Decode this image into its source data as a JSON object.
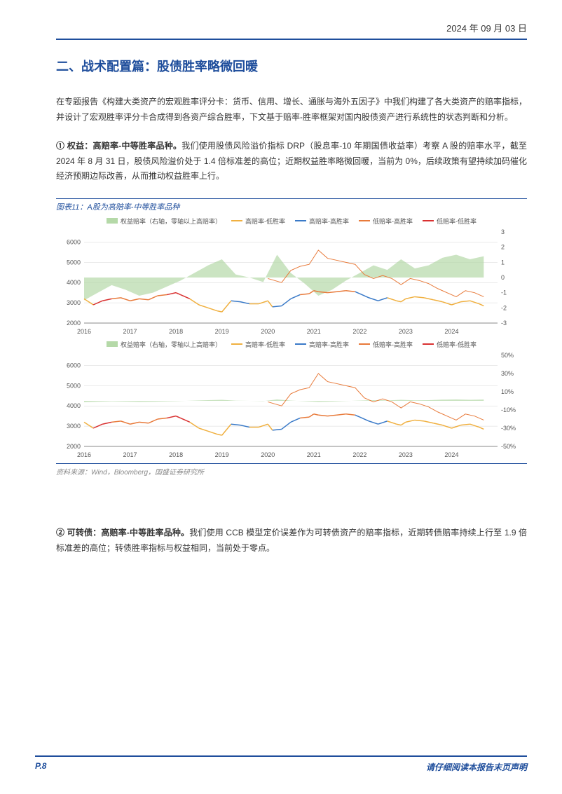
{
  "header": {
    "date": "2024 年 09 月 03 日"
  },
  "section": {
    "title": "二、战术配置篇：股债胜率略微回暖"
  },
  "para1": "在专题报告《构建大类资产的宏观胜率评分卡：货币、信用、增长、通胀与海外五因子》中我们构建了各大类资产的赔率指标，并设计了宏观胜率评分卡合成得到各资产综合胜率，下文基于赔率-胜率框架对国内股债资产进行系统性的状态判断和分析。",
  "para2_lead": "① 权益：高赔率-中等胜率品种。",
  "para2": "我们使用股债风险溢价指标 DRP（股息率-10 年期国债收益率）考察 A 股的赔率水平，截至 2024 年 8 月 31 日，股债风险溢价处于 1.4 倍标准差的高位；近期权益胜率略微回暖，当前为 0%，后续政策有望持续加码催化经济预期边际改善，从而推动权益胜率上行。",
  "chart11": {
    "title": "图表11：A股为高赔率-中等胜率品种",
    "source": "资料来源：Wind，Bloomberg，国盛证券研究所",
    "legend": {
      "area": "权益赔率（右轴，零轴以上高赔率）",
      "l1": "高赔率-低胜率",
      "l2": "高赔率-高胜率",
      "l3": "低赔率-高胜率",
      "l4": "低赔率-低胜率"
    },
    "colors": {
      "area": "#b5d9a8",
      "l1": "#f0b040",
      "l2": "#3a7ac8",
      "l3": "#e87a3a",
      "l4": "#d93030",
      "grid": "#d5d5d5",
      "axis": "#888888",
      "text": "#555555"
    },
    "panel1": {
      "y1_ticks": [
        2000,
        3000,
        4000,
        5000,
        6000
      ],
      "y1_lim": [
        2000,
        6500
      ],
      "y2_ticks": [
        -3,
        -2,
        -1,
        0,
        1,
        2,
        3
      ],
      "y2_lim": [
        -3,
        3
      ],
      "x_ticks": [
        "2016",
        "2017",
        "2018",
        "2019",
        "2020",
        "2021",
        "2022",
        "2023",
        "2024"
      ],
      "x_lim": [
        2016,
        2025
      ],
      "area_data": [
        [
          2016.0,
          -1.5
        ],
        [
          2016.3,
          -1.0
        ],
        [
          2016.6,
          -0.5
        ],
        [
          2016.9,
          -0.8
        ],
        [
          2017.2,
          -1.2
        ],
        [
          2017.5,
          -1.0
        ],
        [
          2017.8,
          -0.6
        ],
        [
          2018.1,
          -0.2
        ],
        [
          2018.4,
          0.3
        ],
        [
          2018.7,
          0.8
        ],
        [
          2019.0,
          1.2
        ],
        [
          2019.3,
          0.2
        ],
        [
          2019.6,
          0.0
        ],
        [
          2019.9,
          -0.3
        ],
        [
          2020.2,
          1.5
        ],
        [
          2020.5,
          0.3
        ],
        [
          2020.8,
          -0.4
        ],
        [
          2021.1,
          -1.2
        ],
        [
          2021.4,
          -0.8
        ],
        [
          2021.7,
          -0.2
        ],
        [
          2022.0,
          0.3
        ],
        [
          2022.3,
          0.8
        ],
        [
          2022.6,
          0.5
        ],
        [
          2022.9,
          1.2
        ],
        [
          2023.2,
          0.6
        ],
        [
          2023.5,
          0.8
        ],
        [
          2023.8,
          1.3
        ],
        [
          2024.1,
          1.5
        ],
        [
          2024.4,
          1.2
        ],
        [
          2024.7,
          1.4
        ]
      ],
      "line_data": [
        [
          2016.0,
          3200,
          "l1"
        ],
        [
          2016.2,
          2900,
          "l1"
        ],
        [
          2016.4,
          3100,
          "l4"
        ],
        [
          2016.6,
          3200,
          "l4"
        ],
        [
          2016.8,
          3250,
          "l3"
        ],
        [
          2017.0,
          3100,
          "l3"
        ],
        [
          2017.2,
          3200,
          "l3"
        ],
        [
          2017.4,
          3150,
          "l3"
        ],
        [
          2017.6,
          3350,
          "l3"
        ],
        [
          2017.8,
          3400,
          "l3"
        ],
        [
          2018.0,
          3500,
          "l4"
        ],
        [
          2018.1,
          3400,
          "l4"
        ],
        [
          2018.3,
          3200,
          "l4"
        ],
        [
          2018.5,
          2900,
          "l1"
        ],
        [
          2018.7,
          2750,
          "l1"
        ],
        [
          2018.9,
          2600,
          "l1"
        ],
        [
          2019.0,
          2550,
          "l1"
        ],
        [
          2019.2,
          3100,
          "l1"
        ],
        [
          2019.4,
          3050,
          "l2"
        ],
        [
          2019.6,
          2950,
          "l2"
        ],
        [
          2019.8,
          2950,
          "l1"
        ],
        [
          2020.0,
          3100,
          "l1"
        ],
        [
          2020.1,
          2800,
          "l1"
        ],
        [
          2020.3,
          2850,
          "l2"
        ],
        [
          2020.5,
          3200,
          "l2"
        ],
        [
          2020.7,
          3400,
          "l2"
        ],
        [
          2020.9,
          3450,
          "l3"
        ],
        [
          2021.0,
          3600,
          "l3"
        ],
        [
          2021.1,
          3550,
          "l3"
        ],
        [
          2021.3,
          3500,
          "l3"
        ],
        [
          2021.5,
          3550,
          "l3"
        ],
        [
          2021.7,
          3600,
          "l3"
        ],
        [
          2021.9,
          3550,
          "l3"
        ],
        [
          2022.0,
          3450,
          "l2"
        ],
        [
          2022.2,
          3250,
          "l2"
        ],
        [
          2022.4,
          3100,
          "l2"
        ],
        [
          2022.6,
          3250,
          "l2"
        ],
        [
          2022.8,
          3100,
          "l1"
        ],
        [
          2022.9,
          3050,
          "l1"
        ],
        [
          2023.0,
          3200,
          "l1"
        ],
        [
          2023.2,
          3300,
          "l1"
        ],
        [
          2023.4,
          3250,
          "l1"
        ],
        [
          2023.6,
          3150,
          "l1"
        ],
        [
          2023.8,
          3050,
          "l1"
        ],
        [
          2024.0,
          2900,
          "l1"
        ],
        [
          2024.2,
          3050,
          "l1"
        ],
        [
          2024.4,
          3100,
          "l1"
        ],
        [
          2024.6,
          2950,
          "l1"
        ],
        [
          2024.7,
          2850,
          "l1"
        ]
      ],
      "upper_line_data": [
        [
          2020.0,
          4200
        ],
        [
          2020.3,
          4000
        ],
        [
          2020.5,
          4600
        ],
        [
          2020.7,
          4800
        ],
        [
          2020.9,
          4900
        ],
        [
          2021.1,
          5600
        ],
        [
          2021.3,
          5200
        ],
        [
          2021.5,
          5100
        ],
        [
          2021.7,
          5000
        ],
        [
          2021.9,
          4900
        ],
        [
          2022.1,
          4400
        ],
        [
          2022.3,
          4200
        ],
        [
          2022.5,
          4350
        ],
        [
          2022.7,
          4200
        ],
        [
          2022.9,
          3900
        ],
        [
          2023.1,
          4200
        ],
        [
          2023.3,
          4100
        ],
        [
          2023.5,
          3950
        ],
        [
          2023.7,
          3700
        ],
        [
          2023.9,
          3500
        ],
        [
          2024.1,
          3300
        ],
        [
          2024.3,
          3600
        ],
        [
          2024.5,
          3500
        ],
        [
          2024.7,
          3300
        ]
      ]
    },
    "panel2": {
      "y1_ticks": [
        2000,
        3000,
        4000,
        5000,
        6000
      ],
      "y1_lim": [
        2000,
        6500
      ],
      "y2_ticks": [
        "-50%",
        "-30%",
        "-10%",
        "10%",
        "30%",
        "50%"
      ],
      "y2_vals": [
        -50,
        -30,
        -10,
        10,
        30,
        50
      ],
      "y2_lim": [
        -50,
        50
      ],
      "x_ticks": [
        "2016",
        "2017",
        "2018",
        "2019",
        "2020",
        "2021",
        "2022",
        "2023",
        "2024"
      ]
    }
  },
  "para3_lead": "② 可转债：高赔率-中等胜率品种。",
  "para3": "我们使用 CCB 模型定价误差作为可转债资产的赔率指标，近期转债赔率持续上行至 1.9 倍标准差的高位；转债胜率指标与权益相同，当前处于零点。",
  "footer": {
    "page": "P.8",
    "disclaimer": "请仔细阅读本报告末页声明"
  }
}
